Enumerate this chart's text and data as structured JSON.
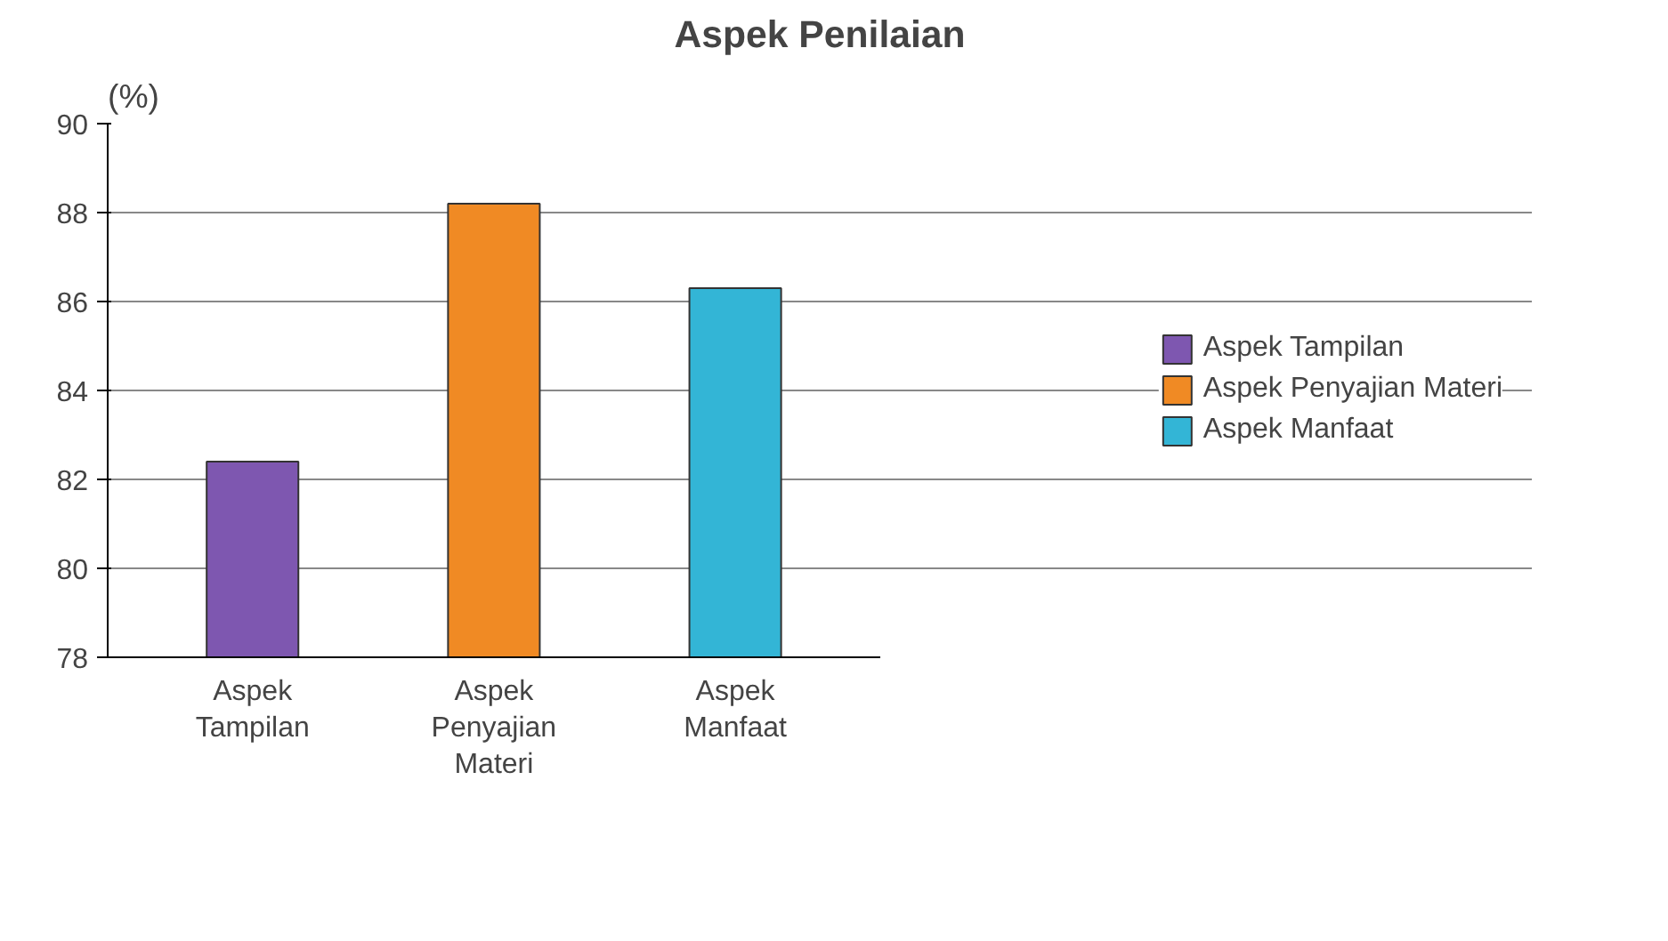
{
  "chart_data": {
    "type": "bar",
    "title": "Aspek Penilaian",
    "ylabel": "(%)",
    "categories": [
      "Aspek\nTampilan",
      "Aspek\nPenyajian\nMateri",
      "Aspek\nManfaat"
    ],
    "series": [
      {
        "name": "Aspek Tampilan",
        "color": "#7e57b0",
        "values": [
          82.4,
          null,
          null
        ]
      },
      {
        "name": "Aspek Penyajian Materi",
        "color": "#f08a24",
        "values": [
          null,
          88.2,
          null
        ]
      },
      {
        "name": "Aspek Manfaat",
        "color": "#33b5d6",
        "values": [
          null,
          null,
          86.3
        ]
      }
    ],
    "ylim": [
      78,
      90
    ],
    "yticks": [
      78,
      80,
      82,
      84,
      86,
      88,
      90
    ],
    "grid": "y",
    "legend": "right"
  }
}
